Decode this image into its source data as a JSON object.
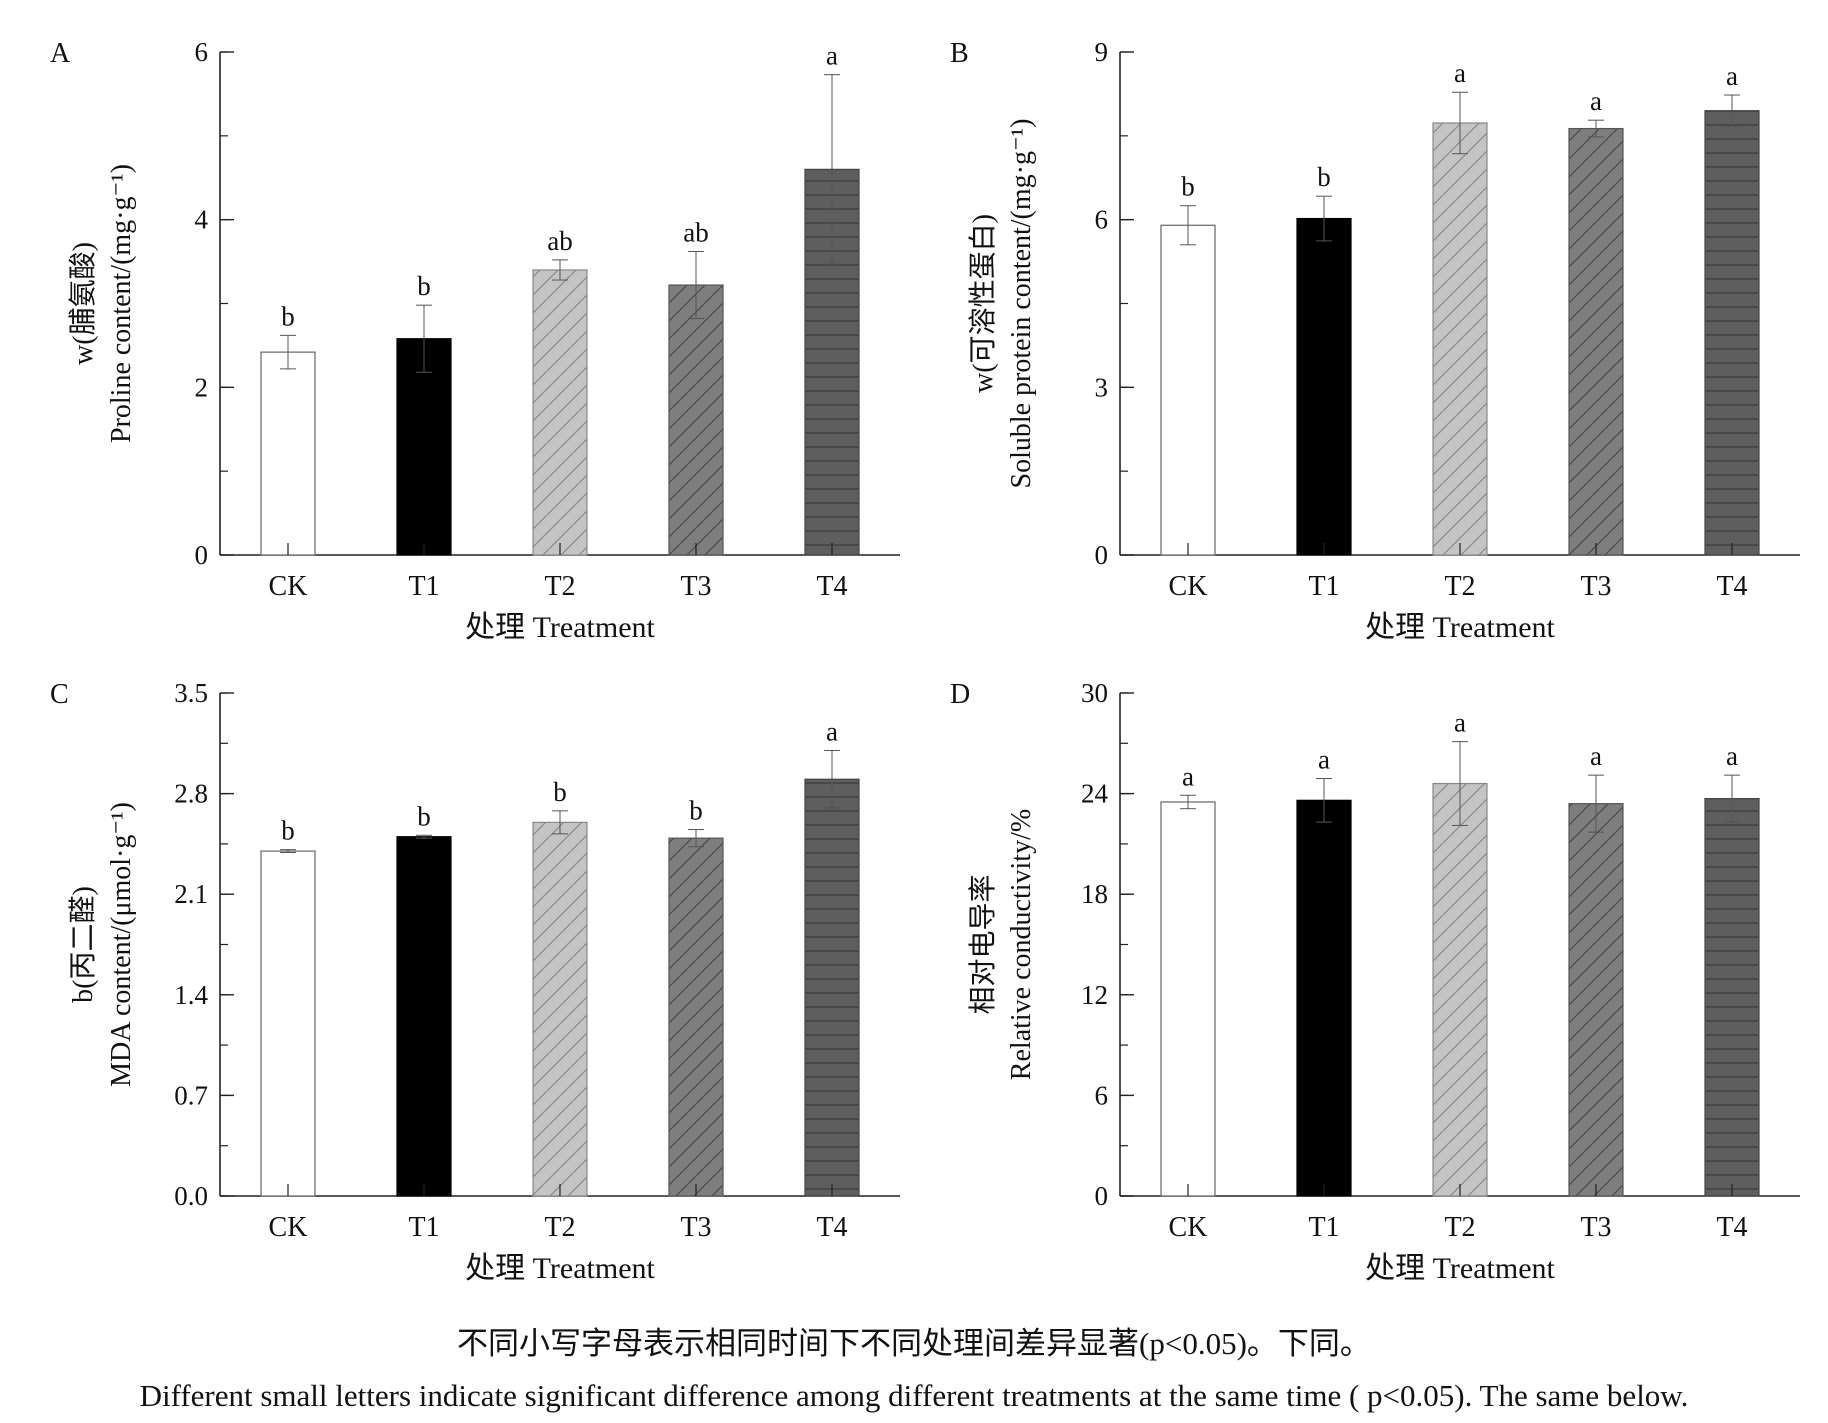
{
  "chart_data": [
    {
      "type": "bar",
      "panel": "A",
      "ylabel_line1": "w(脯氨酸)",
      "ylabel_line2": "Proline content/(mg·g⁻¹)",
      "xlabel": "处理 Treatment",
      "categories": [
        "CK",
        "T1",
        "T2",
        "T3",
        "T4"
      ],
      "values": [
        2.42,
        2.58,
        3.4,
        3.22,
        4.6
      ],
      "errors": [
        0.2,
        0.4,
        0.12,
        0.4,
        1.13
      ],
      "significance": [
        "b",
        "b",
        "ab",
        "ab",
        "a"
      ],
      "ylim": [
        0,
        6
      ],
      "yticks": [
        0,
        2,
        4,
        6
      ],
      "ytick_labels": [
        "0",
        "2",
        "4",
        "6"
      ],
      "minor_step": 1
    },
    {
      "type": "bar",
      "panel": "B",
      "ylabel_line1": "w(可溶性蛋白)",
      "ylabel_line2": "Soluble protein content/(mg·g⁻¹)",
      "xlabel": "处理 Treatment",
      "categories": [
        "CK",
        "T1",
        "T2",
        "T3",
        "T4"
      ],
      "values": [
        5.9,
        6.02,
        7.73,
        7.63,
        7.95
      ],
      "errors": [
        0.35,
        0.4,
        0.55,
        0.15,
        0.28
      ],
      "significance": [
        "b",
        "b",
        "a",
        "a",
        "a"
      ],
      "ylim": [
        0,
        9
      ],
      "yticks": [
        0,
        3,
        6,
        9
      ],
      "ytick_labels": [
        "0",
        "3",
        "6",
        "9"
      ],
      "minor_step": 1.5
    },
    {
      "type": "bar",
      "panel": "C",
      "ylabel_line1": "b(丙二醛)",
      "ylabel_line2": "MDA content/(μmol·g⁻¹)",
      "xlabel": "处理 Treatment",
      "categories": [
        "CK",
        "T1",
        "T2",
        "T3",
        "T4"
      ],
      "values": [
        2.4,
        2.5,
        2.6,
        2.49,
        2.9
      ],
      "errors": [
        0.01,
        0.01,
        0.08,
        0.06,
        0.2
      ],
      "significance": [
        "b",
        "b",
        "b",
        "b",
        "a"
      ],
      "ylim": [
        0,
        3.5
      ],
      "yticks": [
        0,
        0.7,
        1.4,
        2.1,
        2.8,
        3.5
      ],
      "ytick_labels": [
        "0.0",
        "0.7",
        "1.4",
        "2.1",
        "2.8",
        "3.5"
      ],
      "minor_step": 0.35
    },
    {
      "type": "bar",
      "panel": "D",
      "ylabel_line1": "相对电导率",
      "ylabel_line2": "Relative conductivity/%",
      "xlabel": "处理 Treatment",
      "categories": [
        "CK",
        "T1",
        "T2",
        "T3",
        "T4"
      ],
      "values": [
        23.5,
        23.6,
        24.6,
        23.4,
        23.7
      ],
      "errors": [
        0.4,
        1.3,
        2.5,
        1.7,
        1.4
      ],
      "significance": [
        "a",
        "a",
        "a",
        "a",
        "a"
      ],
      "ylim": [
        0,
        30
      ],
      "yticks": [
        0,
        6,
        12,
        18,
        24,
        30
      ],
      "ytick_labels": [
        "0",
        "6",
        "12",
        "18",
        "24",
        "30"
      ],
      "minor_step": 3
    }
  ],
  "bar_styles": [
    {
      "fill": "#ffffff",
      "stroke": "#666666",
      "pattern": "none"
    },
    {
      "fill": "#000000",
      "stroke": "#000000",
      "pattern": "none"
    },
    {
      "fill": "#c4c4c4",
      "stroke": "#888888",
      "pattern": "diagonal",
      "pattern_color": "#8a8a8a"
    },
    {
      "fill": "#7e7e7e",
      "stroke": "#555555",
      "pattern": "diagonal",
      "pattern_color": "#4a4a4a"
    },
    {
      "fill": "#5e5e5e",
      "stroke": "#444444",
      "pattern": "horizontal",
      "pattern_color": "#3a3a3a"
    }
  ],
  "caption_zh": "不同小写字母表示相同时间下不同处理间差异显著(p<0.05)。下同。",
  "caption_en": "Different small letters indicate significant difference among different treatments at the same time ( p<0.05). The same below."
}
